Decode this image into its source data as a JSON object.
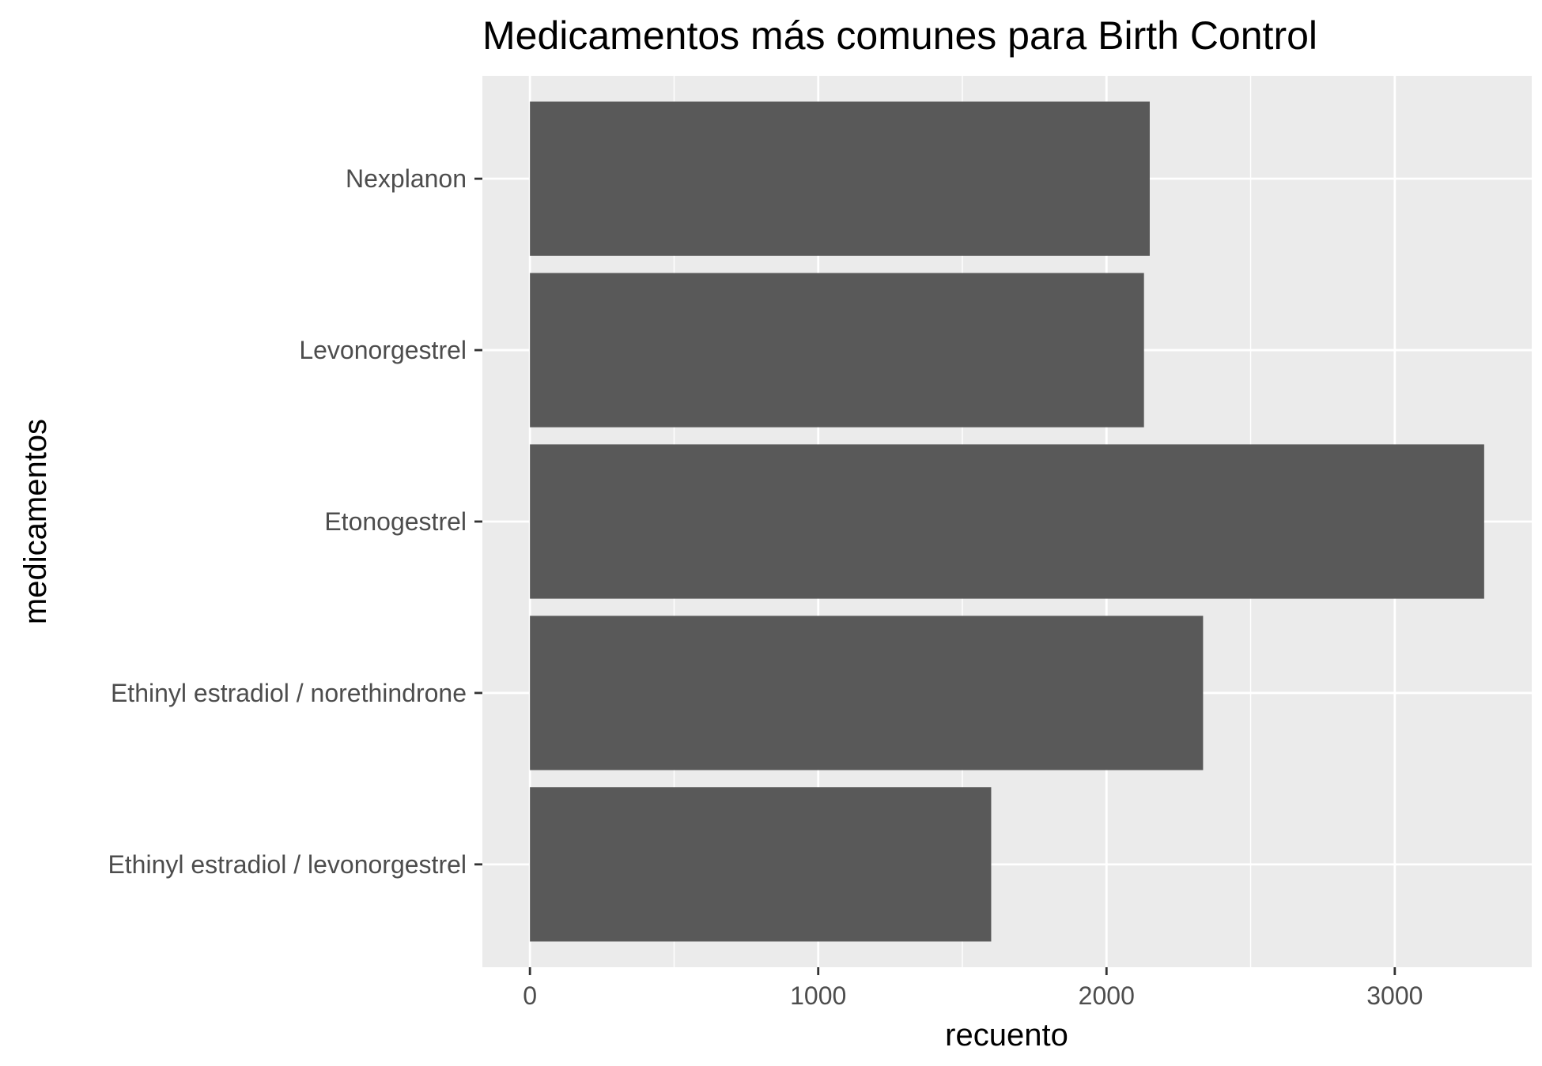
{
  "chart_data": {
    "type": "bar",
    "orientation": "horizontal",
    "title": "Medicamentos más comunes para Birth Control",
    "xlabel": "recuento",
    "ylabel": "medicamentos",
    "categories": [
      "Nexplanon",
      "Levonorgestrel",
      "Etonogestrel",
      "Ethinyl estradiol / norethindrone",
      "Ethinyl estradiol / levonorgestrel"
    ],
    "values": [
      2150,
      2130,
      3310,
      2335,
      1600
    ],
    "xlim": [
      -165,
      3475
    ],
    "xticks": [
      0,
      1000,
      2000,
      3000
    ],
    "xtick_labels": [
      "0",
      "1000",
      "2000",
      "3000"
    ],
    "grid": true,
    "legend": "none",
    "colors": {
      "bar": "#595959",
      "panel": "#ebebeb",
      "grid": "#ffffff",
      "tick": "#333333"
    }
  }
}
